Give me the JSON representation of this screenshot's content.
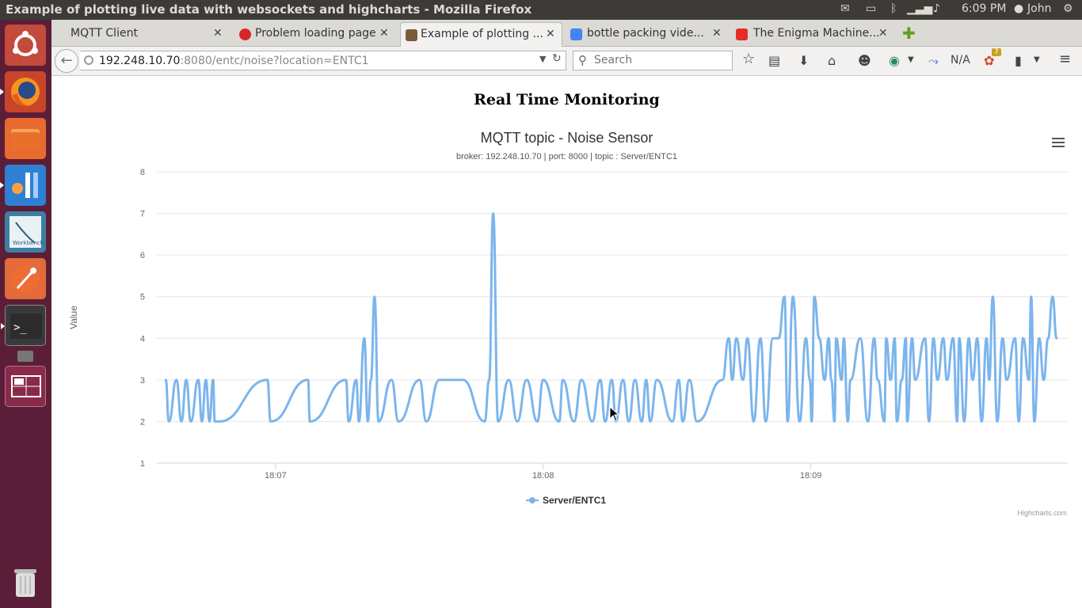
{
  "window": {
    "title": "Example of plotting live data with websockets and highcharts - Mozilla Firefox"
  },
  "tray": {
    "time": "6:09 PM",
    "user": "John"
  },
  "launcher": [
    "ubuntu-dash-icon",
    "firefox-icon",
    "files-icon",
    "jetbrains-icon",
    "mysql-workbench-icon",
    "postman-icon",
    "terminal-icon",
    "workspace-switcher-icon",
    "trash-icon"
  ],
  "tabs": [
    {
      "label": "MQTT Client",
      "favicon_color": "#dcdad5"
    },
    {
      "label": "Problem loading page",
      "favicon_color": "#d9262b"
    },
    {
      "label": "Example of plotting ...",
      "favicon_color": "#7a5b3a"
    },
    {
      "label": "bottle packing vide...",
      "favicon_color": "#4285f4"
    },
    {
      "label": "The Enigma Machine...",
      "favicon_color": "#e52d27"
    }
  ],
  "nav": {
    "url_host": "192.248.10.70",
    "url_rest": ":8080/entc/noise?location=ENTC1",
    "search_placeholder": "Search",
    "na_label": "N/A",
    "badge_count": "7"
  },
  "page": {
    "heading": "Real Time Monitoring"
  },
  "chart_data": {
    "type": "line",
    "title": "MQTT topic - Noise Sensor",
    "subtitle": "broker: 192.248.10.70 | port: 8000 | topic : Server/ENTC1",
    "ylabel": "Value",
    "xlabel": "",
    "ylim": [
      1,
      8
    ],
    "yticks": [
      "1",
      "2",
      "3",
      "4",
      "5",
      "6",
      "7",
      "8"
    ],
    "xticks": [
      {
        "label": "18:07",
        "t": 0
      },
      {
        "label": "18:08",
        "t": 60
      },
      {
        "label": "18:09",
        "t": 120
      }
    ],
    "x_unit": "seconds after 18:07",
    "xlim": [
      -26.6,
      177.6
    ],
    "legend": "bottom-center",
    "grid": true,
    "credits": "Highcharts.com",
    "series": [
      {
        "name": "Server/ENTC1",
        "color": "#7cb5ec",
        "x": [
          -24.6,
          -23.9,
          -22.2,
          -21.1,
          -20.0,
          -19.0,
          -17.3,
          -16.5,
          -15.6,
          -14.8,
          -14.0,
          -13.6,
          -12.6,
          -1.8,
          -1.1,
          7.3,
          7.7,
          15.8,
          16.4,
          18.1,
          18.7,
          19.9,
          20.7,
          21.4,
          22.2,
          23.1,
          26.0,
          27.6,
          32.3,
          33.8,
          36.7,
          42.0,
          46.9,
          47.9,
          48.8,
          49.9,
          52.3,
          54.2,
          56.3,
          58.7,
          60.0,
          63.6,
          64.4,
          66.9,
          68.6,
          71.0,
          72.8,
          73.9,
          75.4,
          76.3,
          77.9,
          79.2,
          80.6,
          82.1,
          83.1,
          84.0,
          85.5,
          89.0,
          90.4,
          91.3,
          92.8,
          94.5,
          100.2,
          101.6,
          102.4,
          103.3,
          104.8,
          105.8,
          107.2,
          108.7,
          109.9,
          111.5,
          112.8,
          114.1,
          114.8,
          116.0,
          117.5,
          118.9,
          119.8,
          120.2,
          120.8,
          121.9,
          123.1,
          124.0,
          124.6,
          125.3,
          125.7,
          126.9,
          127.4,
          128.3,
          128.9,
          131.1,
          132.8,
          134.2,
          135.0,
          136.5,
          136.9,
          137.9,
          138.8,
          139.3,
          140.4,
          141.3,
          141.6,
          142.7,
          143.4,
          145.6,
          146.5,
          147.5,
          148.4,
          149.7,
          150.5,
          151.9,
          152.8,
          153.3,
          154.4,
          155.4,
          156.3,
          157.3,
          158.3,
          159.4,
          160.0,
          160.8,
          161.8,
          163.0,
          163.9,
          165.8,
          166.6,
          167.6,
          168.9,
          169.4,
          170.1,
          171.2,
          172.2,
          173.2,
          174.2,
          175.1
        ],
        "y": [
          3,
          2,
          3,
          2,
          3,
          2,
          3,
          2,
          3,
          2,
          3,
          2,
          2,
          3,
          2,
          3,
          2,
          3,
          2,
          3,
          2,
          4,
          2,
          3,
          5,
          2,
          3,
          2,
          3,
          2,
          3,
          3,
          2,
          3,
          7,
          2,
          3,
          2,
          3,
          2,
          3,
          2,
          3,
          2,
          3,
          2,
          3,
          2,
          3,
          2,
          3,
          2,
          3,
          2,
          3,
          2,
          3,
          2,
          3,
          2,
          3,
          2,
          3,
          4,
          3,
          4,
          3,
          4,
          2,
          4,
          2,
          4,
          4,
          5,
          2,
          5,
          2,
          4,
          3,
          2,
          5,
          4,
          3,
          4,
          3,
          2,
          4,
          3,
          4,
          2,
          3,
          4,
          2,
          4,
          3,
          2,
          4,
          3,
          4,
          2,
          3,
          4,
          2,
          4,
          3,
          4,
          2,
          4,
          3,
          4,
          3,
          4,
          2,
          4,
          2,
          4,
          3,
          4,
          2,
          4,
          3,
          5,
          2,
          4,
          3,
          4,
          2,
          4,
          3,
          5,
          2,
          4,
          3,
          4,
          5,
          4
        ]
      }
    ]
  }
}
